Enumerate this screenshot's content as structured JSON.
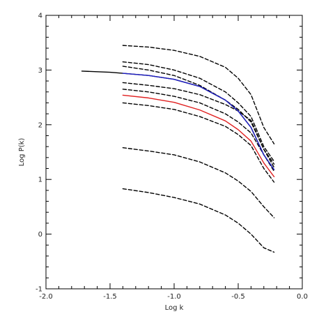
{
  "chart_data": {
    "type": "line",
    "title": "",
    "xlabel": "Log k",
    "ylabel": "Log P(k)",
    "xlim": [
      -2.0,
      0.0
    ],
    "ylim": [
      -1,
      4
    ],
    "x_ticks": [
      -2.0,
      -1.5,
      -1.0,
      -0.5,
      0.0
    ],
    "x_tick_labels": [
      "-2.0",
      "-1.5",
      "-1.0",
      "-0.5",
      "0.0"
    ],
    "y_ticks": [
      -1,
      0,
      1,
      2,
      3,
      4
    ],
    "y_tick_labels": [
      "-1",
      "0",
      "1",
      "2",
      "3",
      "4"
    ],
    "grid": false,
    "legend": "none",
    "series": [
      {
        "color": "#000000",
        "style": "dashed",
        "x": [
          -1.4,
          -1.2,
          -1.0,
          -0.8,
          -0.6,
          -0.5,
          -0.4,
          -0.3,
          -0.22
        ],
        "y": [
          3.45,
          3.42,
          3.36,
          3.25,
          3.05,
          2.85,
          2.55,
          1.95,
          1.65
        ]
      },
      {
        "color": "#000000",
        "style": "dashed",
        "x": [
          -1.4,
          -1.2,
          -1.0,
          -0.8,
          -0.6,
          -0.5,
          -0.4,
          -0.3,
          -0.22
        ],
        "y": [
          3.15,
          3.1,
          3.0,
          2.85,
          2.6,
          2.4,
          2.15,
          1.6,
          1.33
        ]
      },
      {
        "color": "#000000",
        "style": "dashed",
        "x": [
          -1.4,
          -1.2,
          -1.0,
          -0.8,
          -0.6,
          -0.5,
          -0.4,
          -0.3,
          -0.22
        ],
        "y": [
          3.07,
          3.0,
          2.9,
          2.72,
          2.45,
          2.28,
          2.05,
          1.55,
          1.28
        ]
      },
      {
        "color": "#000000",
        "style": "dashed",
        "x": [
          -1.4,
          -1.2,
          -1.0,
          -0.8,
          -0.6,
          -0.5,
          -0.4,
          -0.3,
          -0.22
        ],
        "y": [
          2.77,
          2.72,
          2.66,
          2.55,
          2.37,
          2.25,
          2.08,
          1.55,
          1.22
        ]
      },
      {
        "color": "#000000",
        "style": "dashed",
        "x": [
          -1.4,
          -1.2,
          -1.0,
          -0.8,
          -0.6,
          -0.5,
          -0.4,
          -0.3,
          -0.22
        ],
        "y": [
          2.65,
          2.6,
          2.52,
          2.4,
          2.2,
          2.05,
          1.85,
          1.45,
          1.15
        ]
      },
      {
        "color": "#000000",
        "style": "dashed",
        "x": [
          -1.4,
          -1.2,
          -1.0,
          -0.8,
          -0.6,
          -0.5,
          -0.4,
          -0.3,
          -0.22
        ],
        "y": [
          2.4,
          2.35,
          2.28,
          2.15,
          1.97,
          1.82,
          1.62,
          1.2,
          0.95
        ]
      },
      {
        "color": "#000000",
        "style": "dashed",
        "x": [
          -1.4,
          -1.2,
          -1.0,
          -0.8,
          -0.6,
          -0.5,
          -0.4,
          -0.3,
          -0.22
        ],
        "y": [
          1.58,
          1.52,
          1.45,
          1.32,
          1.12,
          0.97,
          0.78,
          0.5,
          0.3
        ]
      },
      {
        "color": "#000000",
        "style": "dashed",
        "x": [
          -1.4,
          -1.2,
          -1.0,
          -0.8,
          -0.6,
          -0.5,
          -0.4,
          -0.3,
          -0.22
        ],
        "y": [
          0.83,
          0.76,
          0.67,
          0.55,
          0.35,
          0.2,
          0.0,
          -0.25,
          -0.33
        ]
      },
      {
        "color": "#000000",
        "style": "solid",
        "x": [
          -1.72,
          -1.5,
          -1.4,
          -1.2,
          -1.0,
          -0.8,
          -0.6,
          -0.5,
          -0.4,
          -0.3,
          -0.22
        ],
        "y": [
          2.98,
          2.96,
          2.94,
          2.9,
          2.83,
          2.7,
          2.45,
          2.25,
          1.95,
          1.45,
          1.18
        ]
      },
      {
        "color": "#1f1fc8",
        "style": "solid",
        "x": [
          -1.4,
          -1.2,
          -1.0,
          -0.8,
          -0.6,
          -0.5,
          -0.4,
          -0.3,
          -0.22
        ],
        "y": [
          2.94,
          2.9,
          2.83,
          2.7,
          2.45,
          2.25,
          1.95,
          1.45,
          1.18
        ]
      },
      {
        "color": "#e02020",
        "style": "solid",
        "x": [
          -1.4,
          -1.2,
          -1.0,
          -0.8,
          -0.6,
          -0.5,
          -0.4,
          -0.3,
          -0.22
        ],
        "y": [
          2.54,
          2.49,
          2.41,
          2.27,
          2.07,
          1.91,
          1.7,
          1.3,
          1.05
        ]
      }
    ]
  }
}
